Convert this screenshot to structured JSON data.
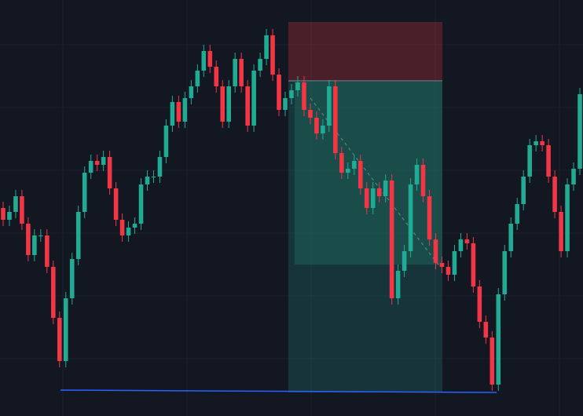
{
  "chart_data": {
    "type": "candlestick",
    "ylim": [
      0,
      530
    ],
    "up_color": "#22ab94",
    "down_color": "#f23645",
    "open": [
      265,
      250,
      260,
      280,
      245,
      205,
      230,
      230,
      190,
      125,
      70,
      150,
      200,
      260,
      310,
      325,
      320,
      330,
      290,
      250,
      230,
      240,
      245,
      295,
      305,
      305,
      330,
      370,
      400,
      375,
      405,
      420,
      440,
      465,
      445,
      420,
      375,
      420,
      455,
      420,
      370,
      440,
      455,
      485,
      435,
      390,
      405,
      415,
      425,
      390,
      380,
      360,
      370,
      420,
      335,
      310,
      315,
      325,
      290,
      265,
      290,
      280,
      300,
      150,
      185,
      210,
      295,
      320,
      280,
      225,
      195,
      190,
      180,
      210,
      225,
      220,
      165,
      120,
      100,
      40,
      155,
      210,
      245,
      270,
      305,
      345,
      350,
      345,
      305,
      260,
      210,
      295,
      315
    ],
    "high": [
      273,
      268,
      288,
      288,
      253,
      238,
      238,
      238,
      198,
      133,
      158,
      208,
      268,
      318,
      333,
      333,
      338,
      338,
      298,
      258,
      248,
      253,
      303,
      313,
      313,
      338,
      378,
      408,
      408,
      413,
      428,
      448,
      473,
      473,
      453,
      428,
      428,
      463,
      463,
      428,
      448,
      463,
      493,
      493,
      443,
      413,
      423,
      433,
      433,
      398,
      388,
      378,
      428,
      428,
      343,
      323,
      333,
      333,
      298,
      298,
      298,
      308,
      308,
      193,
      218,
      303,
      328,
      328,
      288,
      233,
      203,
      198,
      218,
      233,
      233,
      228,
      173,
      128,
      108,
      163,
      218,
      253,
      278,
      313,
      353,
      358,
      358,
      353,
      313,
      268,
      303,
      323,
      418
    ],
    "low": [
      242,
      242,
      252,
      237,
      197,
      197,
      222,
      182,
      117,
      62,
      62,
      142,
      192,
      252,
      302,
      312,
      312,
      282,
      242,
      222,
      222,
      232,
      237,
      287,
      297,
      297,
      322,
      362,
      367,
      367,
      397,
      412,
      432,
      437,
      412,
      367,
      367,
      412,
      412,
      362,
      362,
      432,
      447,
      427,
      382,
      382,
      397,
      407,
      382,
      372,
      352,
      352,
      362,
      327,
      302,
      302,
      307,
      282,
      257,
      257,
      272,
      272,
      142,
      142,
      177,
      202,
      287,
      272,
      217,
      187,
      182,
      172,
      172,
      202,
      212,
      157,
      112,
      92,
      32,
      32,
      147,
      202,
      237,
      262,
      297,
      337,
      337,
      297,
      252,
      202,
      202,
      287,
      307
    ],
    "close": [
      250,
      260,
      280,
      245,
      205,
      230,
      230,
      190,
      125,
      70,
      150,
      200,
      260,
      310,
      325,
      320,
      330,
      290,
      250,
      230,
      240,
      245,
      295,
      305,
      305,
      330,
      370,
      400,
      375,
      405,
      420,
      440,
      465,
      445,
      420,
      375,
      420,
      455,
      420,
      370,
      440,
      455,
      485,
      435,
      390,
      405,
      415,
      425,
      390,
      380,
      360,
      370,
      420,
      335,
      310,
      315,
      325,
      290,
      265,
      290,
      280,
      300,
      150,
      185,
      210,
      295,
      320,
      280,
      225,
      195,
      190,
      180,
      210,
      225,
      220,
      165,
      120,
      100,
      40,
      155,
      210,
      245,
      270,
      305,
      345,
      350,
      345,
      305,
      260,
      210,
      295,
      315,
      410
    ],
    "position": {
      "entry": 427,
      "stop": 502,
      "target": 30
    }
  }
}
